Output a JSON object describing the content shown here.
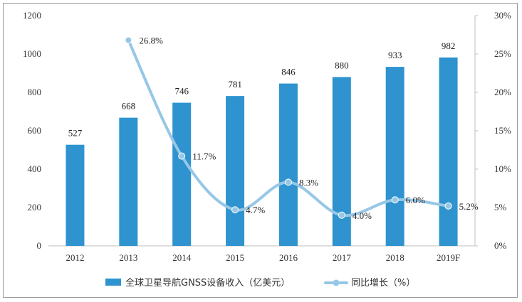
{
  "chart_data": {
    "type": "bar",
    "categories": [
      "2012",
      "2013",
      "2014",
      "2015",
      "2016",
      "2017",
      "2018",
      "2019"
    ],
    "x_tick_labels": [
      "2012",
      "2013",
      "2014",
      "2015",
      "2016",
      "2017",
      "2018",
      "2019F"
    ],
    "series": [
      {
        "name": "全球卫星导航GNSS设备收入（亿美元）",
        "type": "bar",
        "axis": "left",
        "values": [
          527,
          668,
          746,
          781,
          846,
          880,
          933,
          982
        ],
        "labels": [
          "527",
          "668",
          "746",
          "781",
          "846",
          "880",
          "933",
          "982"
        ]
      },
      {
        "name": "同比增长（%）",
        "type": "line",
        "axis": "right",
        "values": [
          null,
          26.8,
          11.7,
          4.7,
          8.3,
          4.0,
          6.0,
          5.2
        ],
        "labels": [
          "",
          "26.8%",
          "11.7%",
          "4.7%",
          "8.3%",
          "4.0%",
          "6.0%",
          "5.2%"
        ]
      }
    ],
    "y_left": {
      "ylim": [
        0,
        1200
      ],
      "ticks": [
        "0",
        "200",
        "400",
        "600",
        "800",
        "1000",
        "1200"
      ]
    },
    "y_right": {
      "ylim": [
        0,
        30
      ],
      "ticks": [
        "0%",
        "5%",
        "10%",
        "15%",
        "20%",
        "25%",
        "30%"
      ]
    },
    "grid": false,
    "legend_position": "bottom",
    "colors": {
      "bar": "#2e93cf",
      "line": "#96c7e6",
      "axis": "#bfbfbf"
    }
  }
}
